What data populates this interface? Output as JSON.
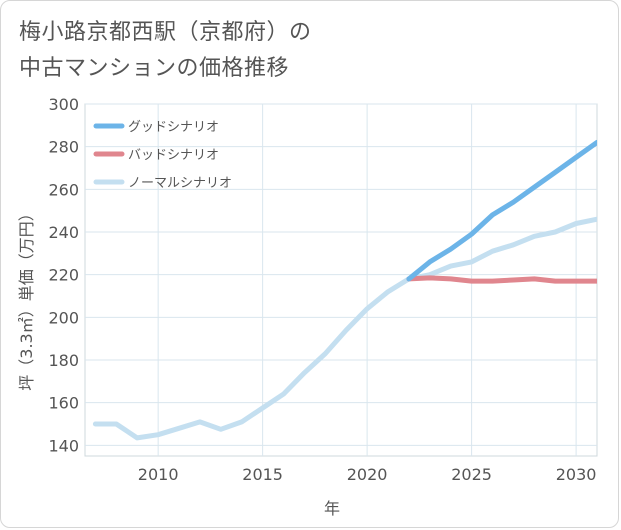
{
  "page": {
    "title_line1": "梅小路京都西駅（京都府）の",
    "title_line2": "中古マンションの価格推移"
  },
  "chart_data": {
    "type": "line",
    "title": "梅小路京都西駅（京都府）の中古マンションの価格推移",
    "xlabel": "年",
    "ylabel": "坪（3.3㎡）単価（万円）",
    "xlim": [
      2006.5,
      2031
    ],
    "ylim": [
      135,
      300
    ],
    "x_ticks": [
      2010,
      2015,
      2020,
      2025,
      2030
    ],
    "y_ticks": [
      140,
      160,
      180,
      200,
      220,
      240,
      260,
      280,
      300
    ],
    "grid": true,
    "legend_position": "top-left",
    "series": [
      {
        "name": "グッドシナリオ",
        "color": "#6cb4e8",
        "x": [
          2022,
          2023,
          2024,
          2025,
          2026,
          2027,
          2028,
          2029,
          2030,
          2031
        ],
        "y": [
          218,
          226,
          232,
          239,
          248,
          254,
          261,
          268,
          275,
          282
        ]
      },
      {
        "name": "バッドシナリオ",
        "color": "#e0868e",
        "x": [
          2022,
          2023,
          2024,
          2025,
          2026,
          2027,
          2028,
          2029,
          2030,
          2031
        ],
        "y": [
          218,
          218.5,
          218,
          217,
          217,
          217.5,
          218,
          217,
          217,
          217
        ]
      },
      {
        "name": "ノーマルシナリオ",
        "color": "#c4dff0",
        "x": [
          2007,
          2008,
          2009,
          2010,
          2011,
          2012,
          2013,
          2014,
          2015,
          2016,
          2017,
          2018,
          2019,
          2020,
          2021,
          2022,
          2023,
          2024,
          2025,
          2026,
          2027,
          2028,
          2029,
          2030,
          2031
        ],
        "y": [
          150,
          150,
          143.5,
          145,
          148,
          151,
          147.5,
          151,
          157.5,
          164,
          174,
          183,
          194,
          204,
          212,
          218,
          220,
          224,
          226,
          231,
          234,
          238,
          240,
          244,
          246
        ]
      }
    ]
  }
}
